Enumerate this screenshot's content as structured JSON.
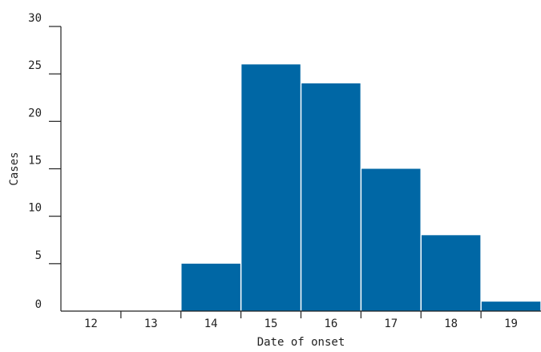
{
  "chart_data": {
    "type": "bar",
    "title": "",
    "xlabel": "Date of onset",
    "ylabel": "Cases",
    "categories": [
      "12",
      "13",
      "14",
      "15",
      "16",
      "17",
      "18",
      "19"
    ],
    "values": [
      0,
      0,
      5,
      26,
      24,
      15,
      8,
      1
    ],
    "ylim": [
      0,
      30
    ],
    "yticks": [
      0,
      5,
      10,
      15,
      20,
      25,
      30
    ],
    "grid": false,
    "legend": "none",
    "bar_color": "#0067a5"
  }
}
